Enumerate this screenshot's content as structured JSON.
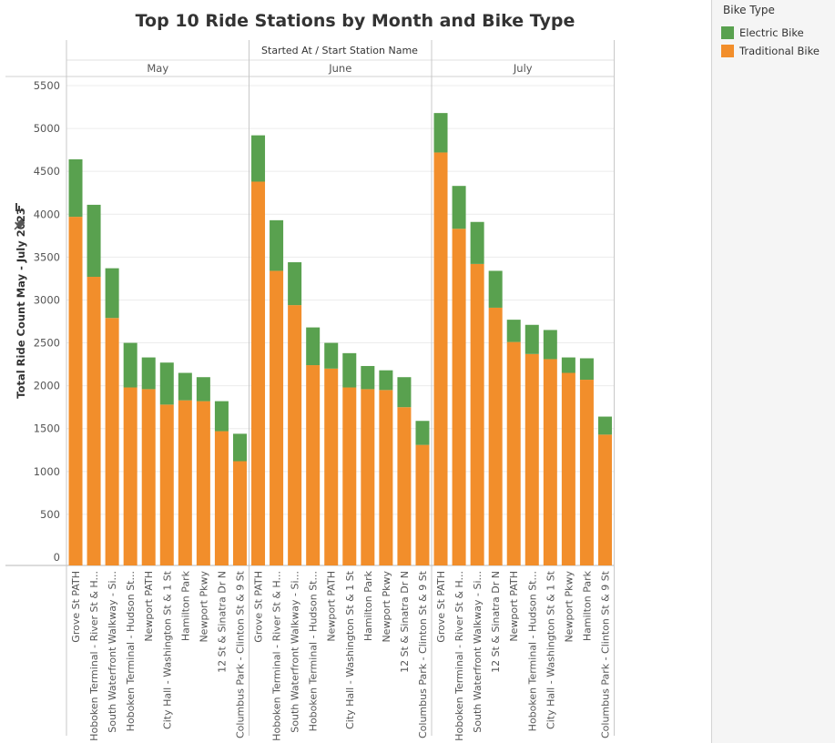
{
  "chart_data": {
    "type": "bar",
    "stacked": true,
    "title": "Top 10 Ride Stations by Month and Bike Type",
    "column_header": "Started At  /  Start Station Name",
    "ylabel": "Total Ride Count May - July 2023",
    "ylim": [
      0,
      5500
    ],
    "yticks": [
      0,
      500,
      1000,
      1500,
      2000,
      2500,
      3000,
      3500,
      4000,
      4500,
      5000,
      5500
    ],
    "legend": {
      "title": "Bike Type",
      "items": [
        {
          "name": "Electric Bike",
          "color": "#59a14f"
        },
        {
          "name": "Traditional Bike",
          "color": "#f28e2b"
        }
      ]
    },
    "colors": {
      "electric": "#59a14f",
      "traditional": "#f28e2b"
    },
    "panels": [
      {
        "month": "May",
        "categories": [
          "Grove St PATH",
          "Hoboken Terminal - River St & H...",
          "South Waterfront Walkway - Si...",
          "Hoboken Terminal - Hudson St...",
          "Newport PATH",
          "City Hall - Washington St & 1 St",
          "Hamilton Park",
          "Newport Pkwy",
          "12 St & Sinatra Dr N",
          "Columbus Park - Clinton St & 9 St"
        ],
        "traditional": [
          3970,
          3270,
          2790,
          1980,
          1960,
          1780,
          1830,
          1820,
          1470,
          1120
        ],
        "electric": [
          670,
          840,
          580,
          520,
          370,
          490,
          320,
          280,
          350,
          320
        ]
      },
      {
        "month": "June",
        "categories": [
          "Grove St PATH",
          "Hoboken Terminal - River St & H...",
          "South Waterfront Walkway - Si...",
          "Hoboken Terminal - Hudson St...",
          "Newport PATH",
          "City Hall - Washington St & 1 St",
          "Hamilton Park",
          "Newport Pkwy",
          "12 St & Sinatra Dr N",
          "Columbus Park - Clinton St & 9 St"
        ],
        "traditional": [
          4380,
          3340,
          2940,
          2240,
          2200,
          1980,
          1960,
          1950,
          1750,
          1310
        ],
        "electric": [
          540,
          590,
          500,
          440,
          300,
          400,
          270,
          230,
          350,
          280
        ]
      },
      {
        "month": "July",
        "categories": [
          "Grove St PATH",
          "Hoboken Terminal - River St & H...",
          "South Waterfront Walkway - Si...",
          "12 St & Sinatra Dr N",
          "Newport PATH",
          "Hoboken Terminal - Hudson St...",
          "City Hall - Washington St & 1 St",
          "Newport Pkwy",
          "Hamilton Park",
          "Columbus Park - Clinton St & 9 St"
        ],
        "traditional": [
          4720,
          3830,
          3420,
          2910,
          2510,
          2370,
          2310,
          2150,
          2070,
          1430
        ],
        "electric": [
          460,
          500,
          490,
          430,
          260,
          340,
          340,
          180,
          250,
          210
        ]
      }
    ]
  }
}
